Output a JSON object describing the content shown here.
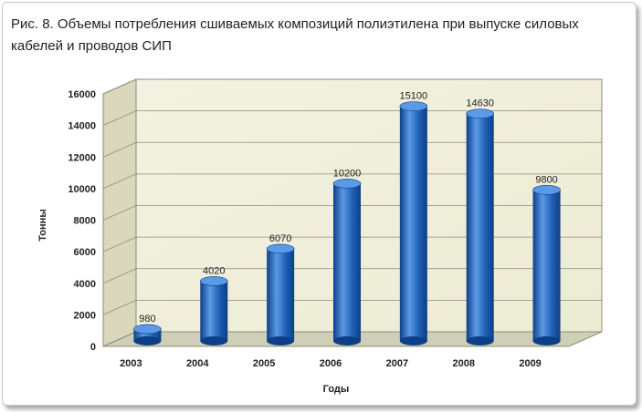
{
  "caption": "Рис. 8. Объемы потребления сшиваемых композиций полиэтилена при выпуске силовых кабелей и проводов СИП",
  "colors": {
    "bar": "#1f5fb4",
    "bar_dark": "#0d3f86",
    "bar_light": "#5a9ae6",
    "wall": "#ecebd3",
    "grid": "#8c8c7a"
  },
  "chart_data": {
    "type": "bar",
    "title": "Рис. 8. Объемы потребления сшиваемых композиций полиэтилена при выпуске силовых кабелей и проводов СИП",
    "categories": [
      "2003",
      "2004",
      "2005",
      "2006",
      "2007",
      "2008",
      "2009"
    ],
    "values": [
      980,
      4020,
      6070,
      10200,
      15100,
      14630,
      9800
    ],
    "data_labels": [
      "980",
      "4020",
      "6070",
      "10200",
      "15100",
      "14630",
      "9800"
    ],
    "xlabel": "Годы",
    "ylabel": "Тонны",
    "ylim": [
      0,
      16000
    ],
    "yticks": [
      "0",
      "2000",
      "4000",
      "6000",
      "8000",
      "10000",
      "12000",
      "14000",
      "16000"
    ],
    "grid": true,
    "style": "3d-cylinder"
  }
}
